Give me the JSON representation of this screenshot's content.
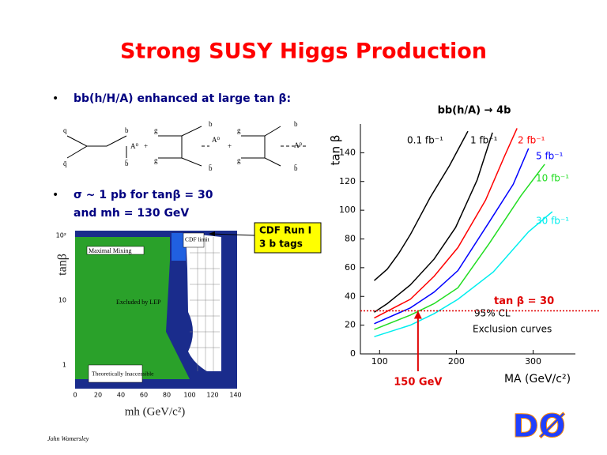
{
  "title": "Strong SUSY Higgs Production",
  "bullets": [
    "bb(h/H/A) enhanced at large tan β:",
    "σ ~ 1 pb for tanβ = 30",
    "and mh = 130 GeV"
  ],
  "diagram_labels": [
    "q",
    "q̄",
    "b",
    "b̄",
    "A⁰",
    "+",
    "g",
    "g",
    "b",
    "b̄",
    "A⁰",
    "+",
    "g",
    "g",
    "b",
    "b̄",
    "A⁰"
  ],
  "callout": [
    "CDF Run I",
    "3 b tags"
  ],
  "left_plot": {
    "y_axis_label": "tanβ",
    "x_axis_label": "mh (GeV/c²)",
    "y_tick_labels": [
      "10²",
      "10",
      "1"
    ],
    "x_tick_labels": [
      "0",
      "20",
      "40",
      "60",
      "80",
      "100",
      "120",
      "140"
    ],
    "regions": [
      "Maximal Mixing",
      "Excluded by LEP",
      "Theoretically Inaccessible",
      "CDF limit"
    ]
  },
  "chart_data": {
    "type": "line",
    "title": "bb(h/A) → 4b",
    "x_label": "MA (GeV/c²)",
    "y_label": "tan β",
    "xlim": [
      75,
      355
    ],
    "ylim": [
      0,
      160
    ],
    "xticks": [
      100,
      200,
      300
    ],
    "yticks": [
      0,
      20,
      40,
      60,
      80,
      100,
      120,
      140
    ],
    "series": [
      {
        "name": "0.1 fb⁻¹",
        "color": "#000000",
        "x": [
          93,
          110,
          125,
          140,
          166,
          191,
          215
        ],
        "values": [
          51,
          59,
          70,
          83,
          109,
          131,
          155
        ]
      },
      {
        "name": "1 fb⁻¹",
        "color": "#000000",
        "x": [
          93,
          110,
          140,
          171,
          199,
          227,
          247
        ],
        "values": [
          29,
          35,
          48,
          66,
          88,
          121,
          154
        ]
      },
      {
        "name": "2 fb⁻¹",
        "color": "#ff0000",
        "x": [
          93,
          140,
          171,
          202,
          238,
          263,
          279
        ],
        "values": [
          25,
          38,
          54,
          74,
          107,
          138,
          157
        ]
      },
      {
        "name": "5 fb⁻¹",
        "color": "#0000ff",
        "x": [
          93,
          140,
          171,
          202,
          243,
          274,
          294
        ],
        "values": [
          21,
          32,
          43,
          58,
          92,
          118,
          143
        ]
      },
      {
        "name": "10 fb⁻¹",
        "color": "#22dd22",
        "x": [
          93,
          140,
          171,
          202,
          243,
          284,
          315
        ],
        "values": [
          17,
          27,
          35,
          46,
          77,
          110,
          132
        ]
      },
      {
        "name": "30 fb⁻¹",
        "color": "#00eeee",
        "x": [
          93,
          140,
          171,
          202,
          248,
          294,
          325
        ],
        "values": [
          12,
          20,
          28,
          38,
          57,
          85,
          99
        ]
      }
    ],
    "hline": {
      "value": 30,
      "label": "tan β = 30"
    },
    "vline": {
      "value": 150,
      "label": "150 GeV"
    },
    "annotations": [
      "95% CL",
      "Exclusion curves"
    ]
  },
  "footer": "John Womersley",
  "logo": "DØ"
}
